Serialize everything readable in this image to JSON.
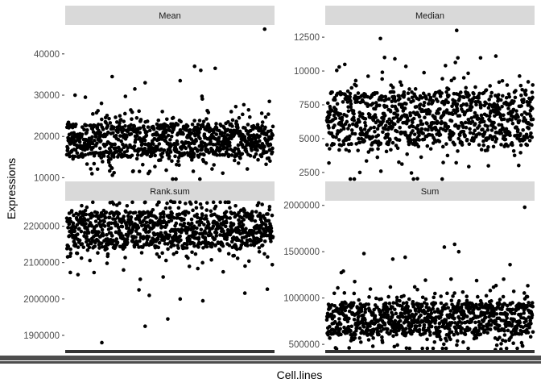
{
  "chart_data": {
    "type": "scatter",
    "xlabel": "Cell.lines",
    "ylabel": "Expressions",
    "legend": "none",
    "grid": false,
    "facets": [
      {
        "title": "Mean",
        "ylim": [
          9300,
          47000
        ],
        "ticks": [
          {
            "value": 10000,
            "label": "10000"
          },
          {
            "value": 20000,
            "label": "20000"
          },
          {
            "value": 30000,
            "label": "30000"
          },
          {
            "value": 40000,
            "label": "40000"
          }
        ],
        "n_points": 1000,
        "band": [
          15000,
          23000
        ],
        "spread": 3500,
        "outliers": [
          {
            "x": 0.96,
            "y": 46000
          },
          {
            "x": 0.62,
            "y": 37000
          },
          {
            "x": 0.72,
            "y": 36500
          },
          {
            "x": 0.65,
            "y": 36000
          },
          {
            "x": 0.22,
            "y": 34500
          },
          {
            "x": 0.38,
            "y": 33000
          },
          {
            "x": 0.55,
            "y": 33500
          },
          {
            "x": 0.04,
            "y": 30000
          },
          {
            "x": 0.09,
            "y": 29500
          },
          {
            "x": 0.33,
            "y": 31500
          }
        ]
      },
      {
        "title": "Median",
        "ylim": [
          1900,
          13400
        ],
        "ticks": [
          {
            "value": 2500,
            "label": "2500"
          },
          {
            "value": 5000,
            "label": "5000"
          },
          {
            "value": 7500,
            "label": "7500"
          },
          {
            "value": 10000,
            "label": "10000"
          },
          {
            "value": 12500,
            "label": "12500"
          }
        ],
        "n_points": 1000,
        "band": [
          4500,
          8500
        ],
        "spread": 1400,
        "outliers": [
          {
            "x": 0.63,
            "y": 13000
          },
          {
            "x": 0.26,
            "y": 12400
          },
          {
            "x": 0.06,
            "y": 10300
          },
          {
            "x": 0.28,
            "y": 11000
          },
          {
            "x": 0.33,
            "y": 10900
          },
          {
            "x": 0.82,
            "y": 11100
          },
          {
            "x": 0.16,
            "y": 2500
          },
          {
            "x": 0.01,
            "y": 3200
          }
        ]
      },
      {
        "title": "Rank.sum",
        "ylim": [
          1860000,
          2270000
        ],
        "ticks": [
          {
            "value": 1900000,
            "label": "1900000"
          },
          {
            "value": 2000000,
            "label": "2000000"
          },
          {
            "value": 2100000,
            "label": "2100000"
          },
          {
            "value": 2200000,
            "label": "2200000"
          }
        ],
        "n_points": 1000,
        "band": [
          2140000,
          2240000
        ],
        "spread": 40000,
        "outliers": [
          {
            "x": 0.17,
            "y": 1880000
          },
          {
            "x": 0.38,
            "y": 1925000
          },
          {
            "x": 0.49,
            "y": 1945000
          },
          {
            "x": 0.66,
            "y": 1995000
          },
          {
            "x": 0.55,
            "y": 2000000
          },
          {
            "x": 0.4,
            "y": 2010000
          },
          {
            "x": 0.35,
            "y": 2025000
          }
        ]
      },
      {
        "title": "Sum",
        "ylim": [
          440000,
          2050000
        ],
        "ticks": [
          {
            "value": 500000,
            "label": "500000"
          },
          {
            "value": 1000000,
            "label": "1000000"
          },
          {
            "value": 1500000,
            "label": "1500000"
          },
          {
            "value": 2000000,
            "label": "2000000"
          }
        ],
        "n_points": 1000,
        "band": [
          600000,
          950000
        ],
        "spread": 150000,
        "outliers": [
          {
            "x": 0.96,
            "y": 1980000
          },
          {
            "x": 0.62,
            "y": 1580000
          },
          {
            "x": 0.57,
            "y": 1550000
          },
          {
            "x": 0.64,
            "y": 1500000
          },
          {
            "x": 0.18,
            "y": 1480000
          },
          {
            "x": 0.32,
            "y": 1420000
          },
          {
            "x": 0.08,
            "y": 1290000
          },
          {
            "x": 0.38,
            "y": 1440000
          }
        ]
      }
    ]
  }
}
